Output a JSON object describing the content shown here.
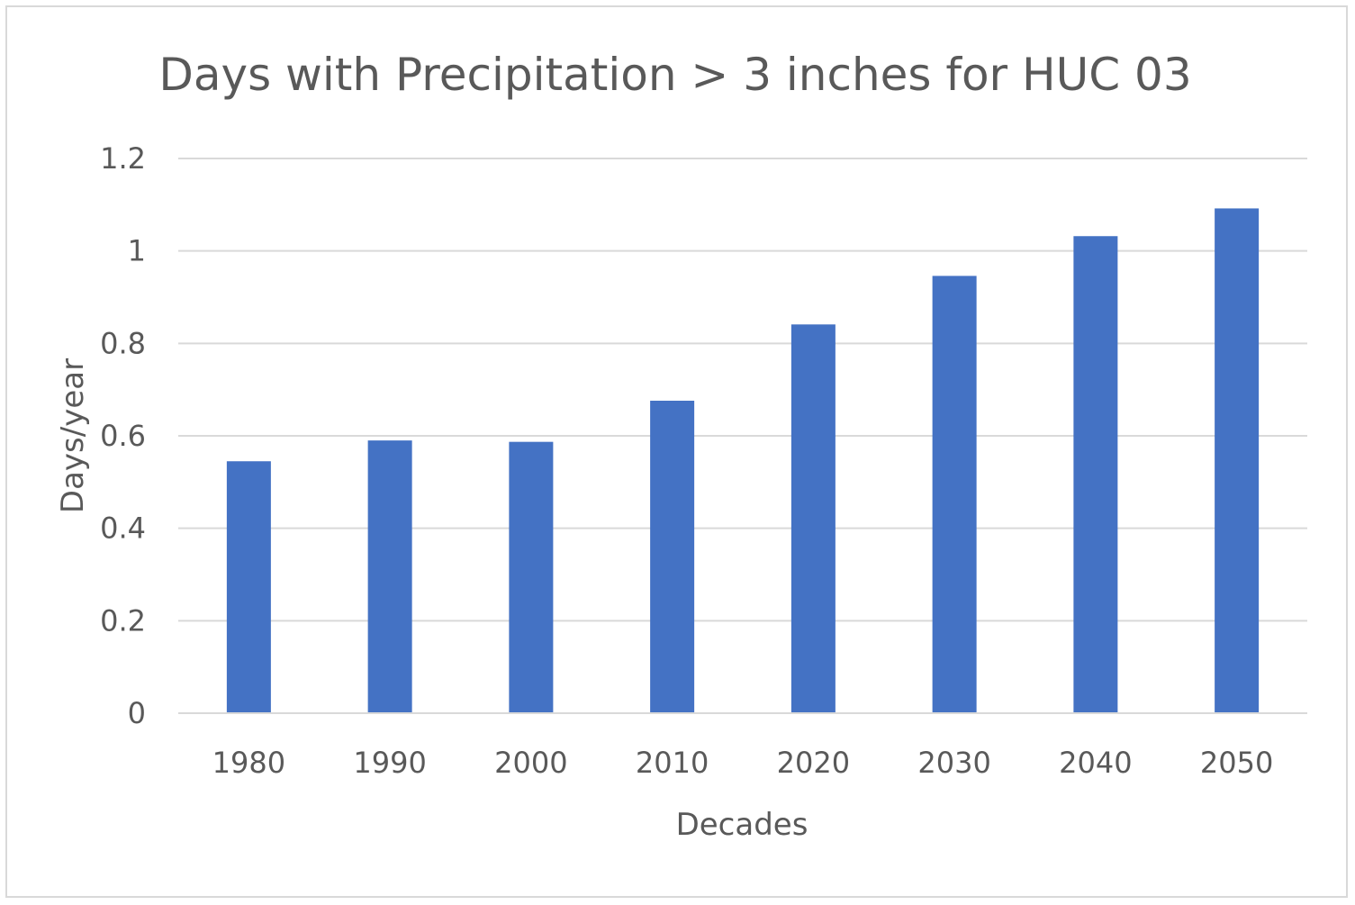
{
  "chart_data": {
    "type": "bar",
    "title": "Days with Precipitation > 3 inches for HUC 03",
    "xlabel": "Decades",
    "ylabel": "Days/year",
    "categories": [
      "1980",
      "1990",
      "2000",
      "2010",
      "2020",
      "2030",
      "2040",
      "2050"
    ],
    "values": [
      0.545,
      0.59,
      0.587,
      0.676,
      0.841,
      0.946,
      1.032,
      1.092
    ],
    "ylim": [
      0,
      1.2
    ],
    "yticks": [
      "0",
      "0.2",
      "0.4",
      "0.6",
      "0.8",
      "1",
      "1.2"
    ],
    "grid": true,
    "legend": "none",
    "colors": {
      "bar": "#4472C4",
      "grid": "#d9d9d9",
      "text": "#595959"
    }
  }
}
